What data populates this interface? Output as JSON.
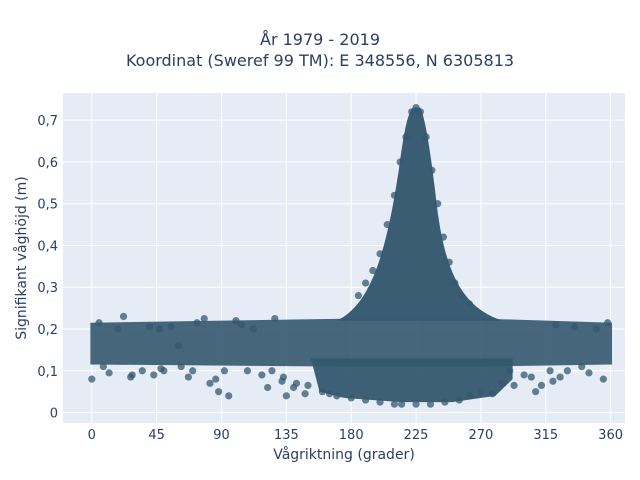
{
  "chart_data": {
    "type": "scatter",
    "title_line1": "År 1979 - 2019",
    "title_line2": "Koordinat (Sweref 99 TM): E 348556, N 6305813",
    "xlabel": "Vågriktning (grader)",
    "ylabel": "Signifikant våghöjd (m)",
    "xlim": [
      -20,
      370
    ],
    "ylim": [
      -0.025,
      0.765
    ],
    "x_ticks": [
      0,
      45,
      90,
      135,
      180,
      225,
      270,
      315,
      360
    ],
    "x_tick_labels": [
      "0",
      "45",
      "90",
      "135",
      "180",
      "225",
      "270",
      "315",
      "360"
    ],
    "y_ticks": [
      0,
      0.1,
      0.2,
      0.3,
      0.4,
      0.5,
      0.6,
      0.7
    ],
    "y_tick_labels": [
      "0",
      "0,1",
      "0,2",
      "0,3",
      "0,4",
      "0,5",
      "0,6",
      "0,7"
    ],
    "grid": true,
    "colors": {
      "marker": "#34586f",
      "plot_bg": "#e5ecf6",
      "grid": "#ffffff",
      "text": "#2a3f5f"
    },
    "series": [
      {
        "points": [
          [
            0,
            0.08
          ],
          [
            5,
            0.215
          ],
          [
            8,
            0.11
          ],
          [
            12,
            0.095
          ],
          [
            18,
            0.2
          ],
          [
            22,
            0.23
          ],
          [
            27,
            0.085
          ],
          [
            28,
            0.09
          ],
          [
            35,
            0.1
          ],
          [
            40,
            0.205
          ],
          [
            43,
            0.09
          ],
          [
            47,
            0.2
          ],
          [
            48,
            0.105
          ],
          [
            50,
            0.1
          ],
          [
            55,
            0.205
          ],
          [
            60,
            0.16
          ],
          [
            62,
            0.11
          ],
          [
            67,
            0.085
          ],
          [
            70,
            0.1
          ],
          [
            73,
            0.215
          ],
          [
            78,
            0.225
          ],
          [
            82,
            0.07
          ],
          [
            86,
            0.08
          ],
          [
            88,
            0.05
          ],
          [
            92,
            0.1
          ],
          [
            95,
            0.04
          ],
          [
            100,
            0.22
          ],
          [
            104,
            0.21
          ],
          [
            108,
            0.1
          ],
          [
            112,
            0.2
          ],
          [
            118,
            0.09
          ],
          [
            122,
            0.06
          ],
          [
            125,
            0.1
          ],
          [
            127,
            0.225
          ],
          [
            132,
            0.075
          ],
          [
            133,
            0.085
          ],
          [
            135,
            0.04
          ],
          [
            140,
            0.06
          ],
          [
            142,
            0.07
          ],
          [
            148,
            0.045
          ],
          [
            150,
            0.065
          ],
          [
            160,
            0.05
          ],
          [
            165,
            0.045
          ],
          [
            170,
            0.04
          ],
          [
            180,
            0.035
          ],
          [
            190,
            0.03
          ],
          [
            200,
            0.025
          ],
          [
            210,
            0.02
          ],
          [
            215,
            0.02
          ],
          [
            225,
            0.02
          ],
          [
            235,
            0.02
          ],
          [
            245,
            0.025
          ],
          [
            255,
            0.03
          ],
          [
            262,
            0.04
          ],
          [
            270,
            0.05
          ],
          [
            278,
            0.045
          ],
          [
            285,
            0.07
          ],
          [
            290,
            0.1
          ],
          [
            293,
            0.065
          ],
          [
            300,
            0.09
          ],
          [
            305,
            0.085
          ],
          [
            308,
            0.05
          ],
          [
            312,
            0.065
          ],
          [
            318,
            0.1
          ],
          [
            320,
            0.075
          ],
          [
            322,
            0.21
          ],
          [
            325,
            0.085
          ],
          [
            330,
            0.1
          ],
          [
            335,
            0.205
          ],
          [
            340,
            0.11
          ],
          [
            345,
            0.095
          ],
          [
            350,
            0.2
          ],
          [
            355,
            0.08
          ],
          [
            358,
            0.215
          ],
          [
            200,
            0.38
          ],
          [
            205,
            0.45
          ],
          [
            210,
            0.52
          ],
          [
            214,
            0.6
          ],
          [
            218,
            0.66
          ],
          [
            222,
            0.72
          ],
          [
            225,
            0.73
          ],
          [
            228,
            0.72
          ],
          [
            232,
            0.66
          ],
          [
            236,
            0.58
          ],
          [
            240,
            0.5
          ],
          [
            244,
            0.42
          ],
          [
            248,
            0.36
          ],
          [
            252,
            0.31
          ],
          [
            256,
            0.28
          ],
          [
            262,
            0.26
          ],
          [
            190,
            0.31
          ],
          [
            195,
            0.34
          ],
          [
            185,
            0.28
          ]
        ]
      }
    ]
  }
}
